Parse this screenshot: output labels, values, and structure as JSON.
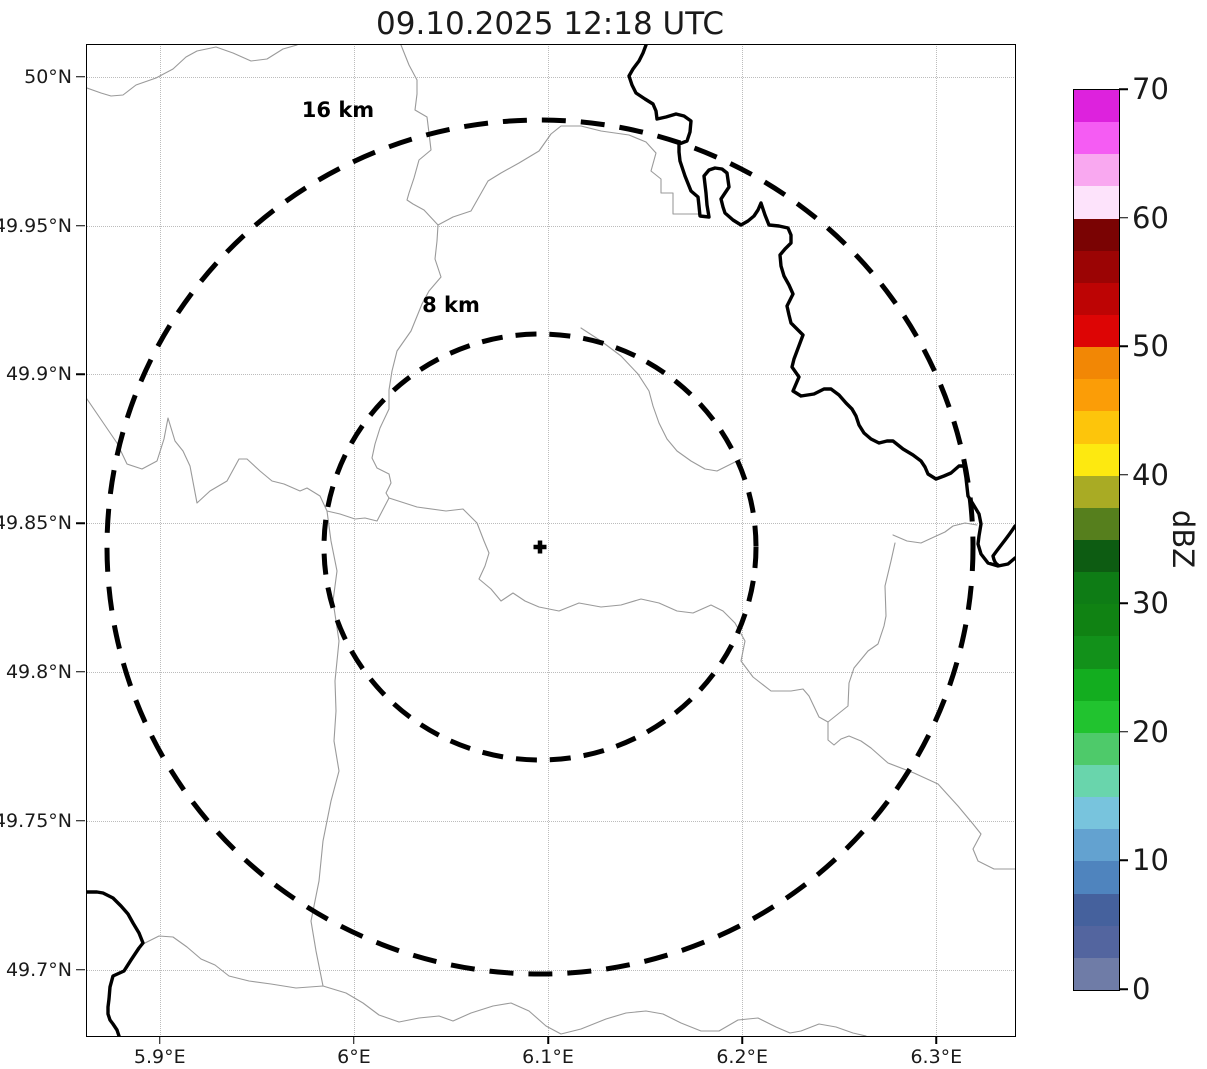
{
  "title": "09.10.2025 12:18 UTC",
  "map": {
    "range_rings": [
      {
        "label": "16 km",
        "radius_km": 16
      },
      {
        "label": "8 km",
        "radius_km": 8
      }
    ],
    "site_marker": {
      "lon": 6.095,
      "lat": 49.842
    }
  },
  "axes": {
    "lon_min": 5.862,
    "lon_max": 6.34,
    "lat_min": 49.678,
    "lat_max": 50.011,
    "x_ticks": [
      {
        "v": 5.9,
        "label": "5.9°E"
      },
      {
        "v": 6.0,
        "label": "6°E"
      },
      {
        "v": 6.1,
        "label": "6.1°E"
      },
      {
        "v": 6.2,
        "label": "6.2°E"
      },
      {
        "v": 6.3,
        "label": "6.3°E"
      }
    ],
    "y_ticks": [
      {
        "v": 50.0,
        "label": "50°N"
      },
      {
        "v": 49.95,
        "label": "49.95°N"
      },
      {
        "v": 49.9,
        "label": "49.9°N"
      },
      {
        "v": 49.85,
        "label": "49.85°N"
      },
      {
        "v": 49.8,
        "label": "49.8°N"
      },
      {
        "v": 49.75,
        "label": "49.75°N"
      },
      {
        "v": 49.7,
        "label": "49.7°N"
      }
    ]
  },
  "colorbar": {
    "label": "dBZ",
    "min": 0,
    "max": 70,
    "segment_step_dbz": 2.5,
    "ticks": [
      {
        "v": 70,
        "label": "70"
      },
      {
        "v": 60,
        "label": "60"
      },
      {
        "v": 50,
        "label": "50"
      },
      {
        "v": 40,
        "label": "40"
      },
      {
        "v": 30,
        "label": "30"
      },
      {
        "v": 20,
        "label": "20"
      },
      {
        "v": 10,
        "label": "10"
      },
      {
        "v": 0,
        "label": "0"
      }
    ],
    "segments_top_to_bottom": [
      "#dd22dd",
      "#f55cf3",
      "#f9a8f0",
      "#fde3fb",
      "#7a0303",
      "#9b0404",
      "#bd0404",
      "#dd0505",
      "#f28705",
      "#fb9d07",
      "#fdc50b",
      "#fde910",
      "#a9ab24",
      "#567f1d",
      "#0d5c12",
      "#0e7c15",
      "#108213",
      "#12911a",
      "#13ad1f",
      "#21c32f",
      "#4eca6a",
      "#69d5ac",
      "#78c4dd",
      "#63a2d0",
      "#4f84be",
      "#45619d",
      "#53659f",
      "#6f7ca7"
    ]
  },
  "chart_data": {
    "type": "heatmap",
    "title": "09.10.2025 12:18 UTC",
    "xlabel": "",
    "ylabel": "",
    "x_tick_labels": [
      "5.9°E",
      "6°E",
      "6.1°E",
      "6.2°E",
      "6.3°E"
    ],
    "y_tick_labels": [
      "50°N",
      "49.95°N",
      "49.9°N",
      "49.85°N",
      "49.8°N",
      "49.75°N",
      "49.7°N"
    ],
    "xlim": [
      5.862,
      6.34
    ],
    "ylim": [
      49.678,
      50.011
    ],
    "grid": true,
    "values": [],
    "note": "Radar reflectivity display with no echoes visible; basemap shows rivers and national border, with dashed range rings of 8 km and 16 km around the radar site marker.",
    "radar_site": {
      "lon": 6.095,
      "lat": 49.842
    },
    "range_rings_km": [
      8,
      16
    ],
    "annotations": [
      "16 km",
      "8 km"
    ],
    "colorbar": {
      "label": "dBZ",
      "range": [
        0,
        70
      ],
      "tick_interval": 10,
      "color_step": 2.5,
      "position": "right"
    }
  }
}
